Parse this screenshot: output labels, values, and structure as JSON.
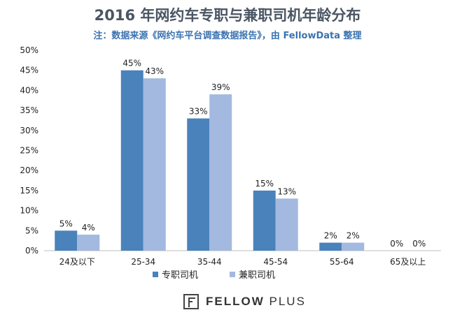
{
  "title": "2016 年网约车专职与兼职司机年龄分布",
  "subtitle": "注：数据来源《网约车平台调查数据报告》，由 FellowData 整理",
  "logo": {
    "brand": "FELLOW",
    "suffix": "PLUS",
    "icon": "fellow-plus-logo-icon"
  },
  "colors": {
    "fulltime": "#4a82bb",
    "parttime": "#a3b9df",
    "axis": "#bfbfbf"
  },
  "chart_data": {
    "type": "bar",
    "categories": [
      "24及以下",
      "25-34",
      "35-44",
      "45-54",
      "55-64",
      "65及以上"
    ],
    "series": [
      {
        "name": "专职司机",
        "values": [
          5,
          45,
          33,
          15,
          2,
          0
        ],
        "labels": [
          "5%",
          "45%",
          "33%",
          "15%",
          "2%",
          "0%"
        ]
      },
      {
        "name": "兼职司机",
        "values": [
          4,
          43,
          39,
          13,
          2,
          0
        ],
        "labels": [
          "4%",
          "43%",
          "39%",
          "13%",
          "2%",
          "0%"
        ]
      }
    ],
    "ylim": [
      0,
      50
    ],
    "yticks": [
      "0%",
      "5%",
      "10%",
      "15%",
      "20%",
      "25%",
      "30%",
      "35%",
      "40%",
      "45%",
      "50%"
    ],
    "legend_position": "bottom",
    "grid": false
  }
}
